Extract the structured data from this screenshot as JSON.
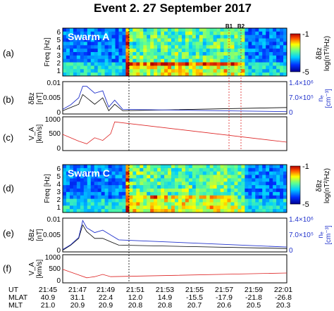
{
  "figure": {
    "title": "Event 2.  27 September 2017",
    "event_markers": [
      "B1",
      "B2"
    ],
    "panel_letters": [
      "(a)",
      "(b)",
      "(c)",
      "(d)",
      "(e)",
      "(f)"
    ],
    "satellites": [
      "Swarm A",
      "Swarm C"
    ],
    "colorbar": {
      "ticks": [
        "-1",
        "-5"
      ],
      "label_line1": "δBz",
      "label_line2": "log(nT²/Hz)"
    },
    "freq_axis": {
      "label": "Freq [Hz]",
      "ticks": [
        "1",
        "2",
        "3",
        "4",
        "5",
        "6"
      ]
    },
    "dbz_axis": {
      "label": "δBz",
      "unit": "[nT]",
      "ticks": [
        "0.01",
        "0.005",
        "0"
      ]
    },
    "ne_axis": {
      "label": "nₑ",
      "unit": "[cm⁻³]",
      "ticks_b": [
        "1.4×10⁶",
        "7.0×10⁵",
        "0"
      ],
      "ticks_e": [
        "1.4×10⁶",
        "7.0×10⁵",
        "0"
      ]
    },
    "va_axis": {
      "label": "V_A",
      "unit": "[km/s]",
      "ticks_c": [
        "1000",
        "500",
        "0"
      ],
      "ticks_f": [
        "1000",
        "500",
        "0"
      ]
    },
    "time_table": {
      "row_labels": [
        "UT",
        "MLAT",
        "MLT"
      ],
      "UT": [
        "21:45",
        "21:47",
        "21:49",
        "21:51",
        "21:53",
        "21:55",
        "21:57",
        "21:59",
        "22:01"
      ],
      "MLAT": [
        "40.9",
        "31.1",
        "22.4",
        "12.0",
        "14.9",
        "-15.5",
        "-17.9",
        "-21.8",
        "-26.8"
      ],
      "MLT": [
        "21.0",
        "20.9",
        "20.9",
        "20.8",
        "20.8",
        "20.7",
        "20.6",
        "20.5",
        "20.3"
      ]
    },
    "colors": {
      "blue": "#2233cc",
      "red": "#dd2222",
      "black": "#000000"
    }
  },
  "chart_data": [
    {
      "panel": "(a)",
      "type": "heatmap",
      "xlabel": "",
      "ylabel": "Freq [Hz]",
      "ylim": [
        0,
        6
      ],
      "colorbar": [
        -5,
        -1
      ]
    },
    {
      "panel": "(b)",
      "type": "line",
      "ylim": [
        0,
        0.01
      ],
      "y2lim": [
        0,
        1400000
      ],
      "x": [
        21.45,
        21.47,
        21.49,
        21.5,
        21.51,
        21.53,
        21.55,
        21.565,
        21.58,
        21.6,
        22.01
      ],
      "series": [
        {
          "values": [
            0.001,
            0.002,
            0.003,
            0.006,
            0.005,
            0.003,
            0.005,
            0.001,
            0.003,
            0.001,
            0.002
          ]
        },
        {
          "values": [
            200000,
            400000,
            700000,
            1200000,
            1200000,
            900000,
            1000000,
            300000,
            600000,
            200000,
            100000
          ]
        }
      ]
    },
    {
      "panel": "(c)",
      "type": "line",
      "ylim": [
        0,
        1000
      ],
      "x": [
        21.45,
        21.49,
        21.51,
        21.53,
        21.55,
        21.57,
        21.58,
        22.01
      ],
      "values": [
        480,
        280,
        200,
        380,
        300,
        500,
        850,
        250
      ]
    },
    {
      "panel": "(d)",
      "type": "heatmap",
      "xlabel": "",
      "ylabel": "Freq [Hz]",
      "ylim": [
        0,
        6
      ],
      "colorbar": [
        -5,
        -1
      ]
    },
    {
      "panel": "(e)",
      "type": "line",
      "ylim": [
        0,
        0.01
      ],
      "y2lim": [
        0,
        1400000
      ],
      "x": [
        21.45,
        21.47,
        21.49,
        21.5,
        21.51,
        21.53,
        21.55,
        21.57,
        21.59,
        22.01
      ],
      "series": [
        {
          "values": [
            0.0005,
            0.002,
            0.004,
            0.008,
            0.006,
            0.004,
            0.004,
            0.003,
            0.002,
            0.001
          ]
        },
        {
          "values": [
            100000,
            300000,
            600000,
            1300000,
            1000000,
            800000,
            900000,
            700000,
            500000,
            200000
          ]
        }
      ]
    },
    {
      "panel": "(f)",
      "type": "line",
      "ylim": [
        0,
        1000
      ],
      "x": [
        21.45,
        21.49,
        21.51,
        21.53,
        21.55,
        21.57,
        22.01
      ],
      "values": [
        480,
        280,
        180,
        220,
        300,
        220,
        350
      ]
    }
  ]
}
